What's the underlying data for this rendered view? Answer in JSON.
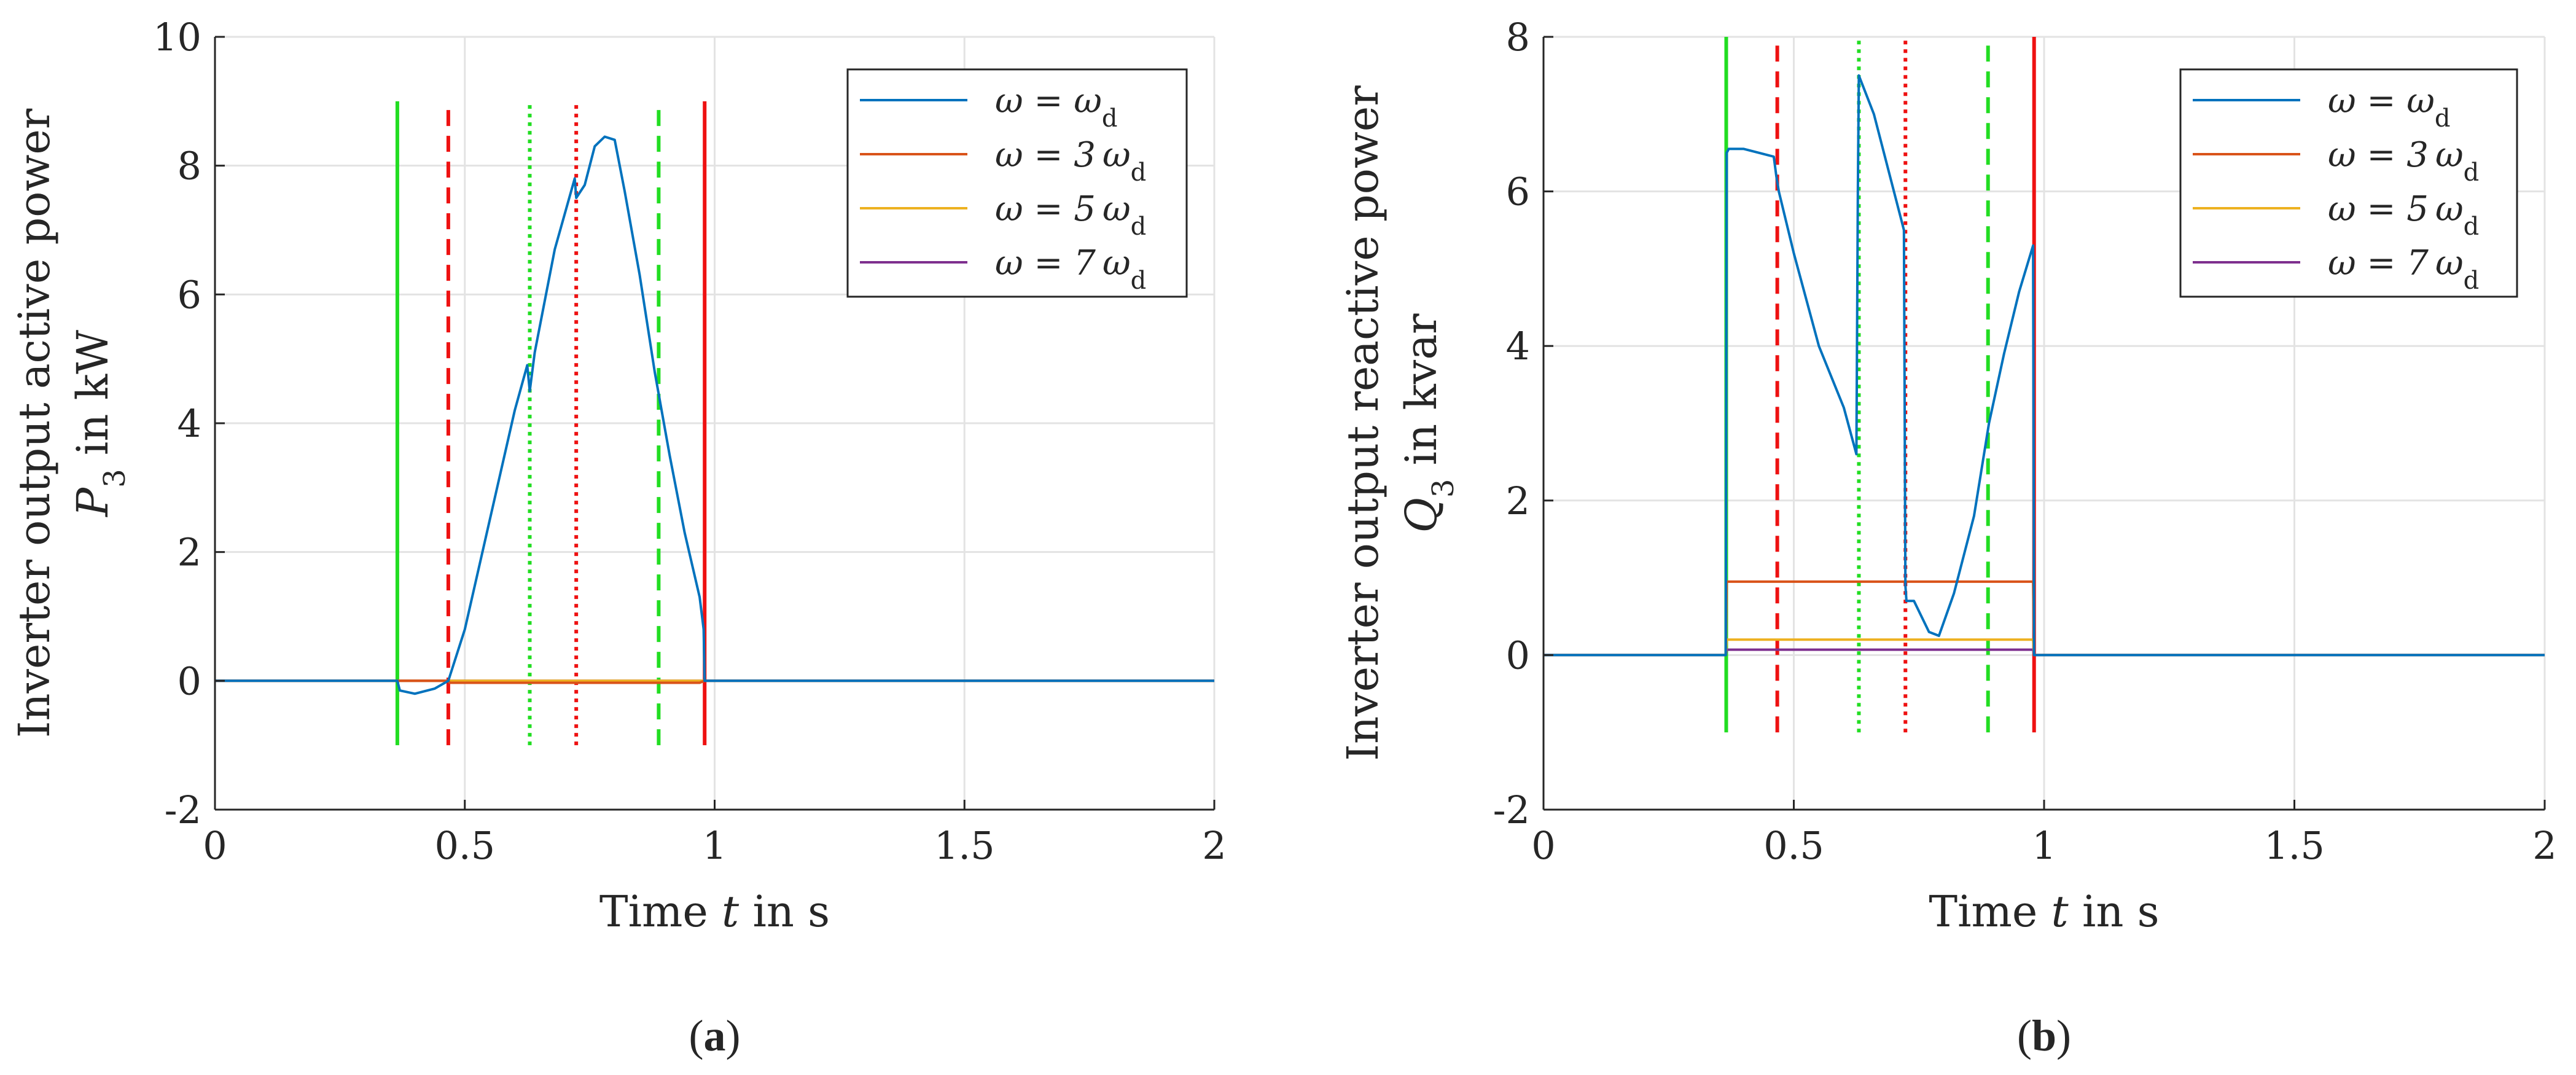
{
  "colors": {
    "blue": "#0072BD",
    "orange": "#D95319",
    "yellow": "#EDB120",
    "purple": "#7E2F8E",
    "green": "#22DD22",
    "red": "#EE1111"
  },
  "chart_data": [
    {
      "type": "line",
      "panel_label": "a",
      "panel_open": "(",
      "panel_close": ")",
      "xlabel": "Time t in s",
      "ylabel": [
        "Inverter output active power",
        "P3 in kW"
      ],
      "xlim": [
        0,
        2
      ],
      "ylim": [
        -2,
        10
      ],
      "xticks": [
        0,
        0.5,
        1,
        1.5,
        2
      ],
      "xtick_labels": [
        "0",
        "0.5",
        "1",
        "1.5",
        "2"
      ],
      "yticks": [
        -2,
        0,
        2,
        4,
        6,
        8,
        10
      ],
      "ytick_labels": [
        "-2",
        "0",
        "2",
        "4",
        "6",
        "8",
        "10"
      ],
      "grid": true,
      "legend_position": "top-right",
      "events": [
        {
          "x": 0.365,
          "style": "solid",
          "color": "green",
          "y": [
            -1,
            9
          ]
        },
        {
          "x": 0.467,
          "style": "dashed",
          "color": "red",
          "y": [
            -1,
            9
          ]
        },
        {
          "x": 0.63,
          "style": "dotted",
          "color": "green",
          "y": [
            -1,
            9
          ]
        },
        {
          "x": 0.723,
          "style": "dotted",
          "color": "red",
          "y": [
            -1,
            9
          ]
        },
        {
          "x": 0.888,
          "style": "dashed",
          "color": "green",
          "y": [
            -1,
            9
          ]
        },
        {
          "x": 0.98,
          "style": "solid",
          "color": "red",
          "y": [
            -1,
            9
          ]
        }
      ],
      "series": [
        {
          "name": "ω = ω_d",
          "color": "blue",
          "x": [
            0,
            0.365,
            0.37,
            0.4,
            0.44,
            0.467,
            0.5,
            0.55,
            0.6,
            0.625,
            0.63,
            0.64,
            0.68,
            0.72,
            0.723,
            0.74,
            0.76,
            0.78,
            0.8,
            0.82,
            0.85,
            0.88,
            0.91,
            0.94,
            0.97,
            0.978,
            0.98,
            0.99,
            2.0
          ],
          "y": [
            0,
            0,
            -0.15,
            -0.2,
            -0.12,
            0,
            0.8,
            2.5,
            4.2,
            4.9,
            4.5,
            5.1,
            6.7,
            7.8,
            7.5,
            7.7,
            8.3,
            8.45,
            8.4,
            7.6,
            6.3,
            4.8,
            3.5,
            2.3,
            1.3,
            0.8,
            0,
            0,
            0
          ]
        },
        {
          "name": "ω = 3ω_d",
          "color": "orange",
          "x": [
            0,
            0.467,
            0.47,
            0.97,
            0.98,
            2.0
          ],
          "y": [
            0,
            0,
            -0.03,
            -0.03,
            0,
            0
          ]
        },
        {
          "name": "ω = 5ω_d",
          "color": "yellow",
          "x": [
            0,
            2.0
          ],
          "y": [
            0,
            0
          ]
        },
        {
          "name": "ω = 7ω_d",
          "color": "purple",
          "x": [
            0,
            2.0
          ],
          "y": [
            0,
            0
          ]
        }
      ]
    },
    {
      "type": "line",
      "panel_label": "b",
      "panel_open": "(",
      "panel_close": ")",
      "xlabel": "Time t in s",
      "ylabel": [
        "Inverter output reactive power",
        "Q3 in kvar"
      ],
      "xlim": [
        0,
        2
      ],
      "ylim": [
        -2,
        8
      ],
      "xticks": [
        0,
        0.5,
        1,
        1.5,
        2
      ],
      "xtick_labels": [
        "0",
        "0.5",
        "1",
        "1.5",
        "2"
      ],
      "yticks": [
        -2,
        0,
        2,
        4,
        6,
        8
      ],
      "ytick_labels": [
        "-2",
        "0",
        "2",
        "4",
        "6",
        "8"
      ],
      "grid": true,
      "legend_position": "top-right",
      "events": [
        {
          "x": 0.365,
          "style": "solid",
          "color": "green",
          "y": [
            -1,
            8
          ]
        },
        {
          "x": 0.467,
          "style": "dashed",
          "color": "red",
          "y": [
            -1,
            8
          ]
        },
        {
          "x": 0.63,
          "style": "dotted",
          "color": "green",
          "y": [
            -1,
            8
          ]
        },
        {
          "x": 0.723,
          "style": "dotted",
          "color": "red",
          "y": [
            -1,
            8
          ]
        },
        {
          "x": 0.888,
          "style": "dashed",
          "color": "green",
          "y": [
            -1,
            8
          ]
        },
        {
          "x": 0.98,
          "style": "solid",
          "color": "red",
          "y": [
            -1,
            8
          ]
        }
      ],
      "series": [
        {
          "name": "ω = ω_d",
          "color": "blue",
          "x": [
            0,
            0.364,
            0.366,
            0.37,
            0.4,
            0.43,
            0.46,
            0.465,
            0.47,
            0.5,
            0.55,
            0.6,
            0.625,
            0.628,
            0.63,
            0.66,
            0.7,
            0.72,
            0.723,
            0.725,
            0.74,
            0.77,
            0.79,
            0.82,
            0.86,
            0.89,
            0.92,
            0.95,
            0.978,
            0.98,
            0.99,
            2.0
          ],
          "y": [
            0,
            0,
            6.5,
            6.55,
            6.55,
            6.5,
            6.45,
            6.2,
            6.0,
            5.2,
            4.0,
            3.2,
            2.6,
            6.0,
            7.5,
            7.0,
            6.0,
            5.5,
            0.9,
            0.7,
            0.7,
            0.3,
            0.25,
            0.8,
            1.8,
            3.0,
            3.9,
            4.7,
            5.3,
            0,
            0,
            0
          ]
        },
        {
          "name": "ω = 3ω_d",
          "color": "orange",
          "x": [
            0,
            0.364,
            0.366,
            0.978,
            0.98,
            2.0
          ],
          "y": [
            0,
            0,
            0.95,
            0.95,
            0,
            0
          ]
        },
        {
          "name": "ω = 5ω_d",
          "color": "yellow",
          "x": [
            0,
            0.364,
            0.366,
            0.978,
            0.98,
            2.0
          ],
          "y": [
            0,
            0,
            0.2,
            0.2,
            0,
            0
          ]
        },
        {
          "name": "ω = 7ω_d",
          "color": "purple",
          "x": [
            0,
            0.364,
            0.366,
            0.978,
            0.98,
            2.0
          ],
          "y": [
            0,
            0,
            0.07,
            0.07,
            0,
            0
          ]
        }
      ]
    }
  ]
}
